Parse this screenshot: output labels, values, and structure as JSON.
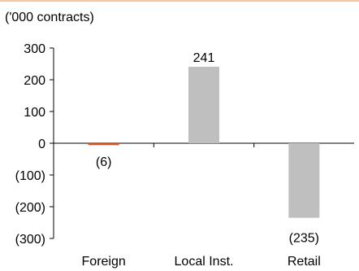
{
  "colors": {
    "top_rule": "#f5c6a0",
    "foreign_bar": "#d9541e",
    "other_bars": "#bfbfbf",
    "axis": "#000000"
  },
  "chart_data": {
    "type": "bar",
    "unit_label": "('000 contracts)",
    "categories": [
      "Foreign",
      "Local Inst.",
      "Retail"
    ],
    "values": [
      -6,
      241,
      -235
    ],
    "data_labels": [
      "(6)",
      "241",
      "(235)"
    ],
    "ylim": [
      -300,
      300
    ],
    "yticks": [
      300,
      200,
      100,
      0,
      -100,
      -200,
      -300
    ],
    "ytick_labels": [
      "300",
      "200",
      "100",
      "0",
      "(100)",
      "(200)",
      "(300)"
    ],
    "grid": false,
    "legend": "none"
  }
}
